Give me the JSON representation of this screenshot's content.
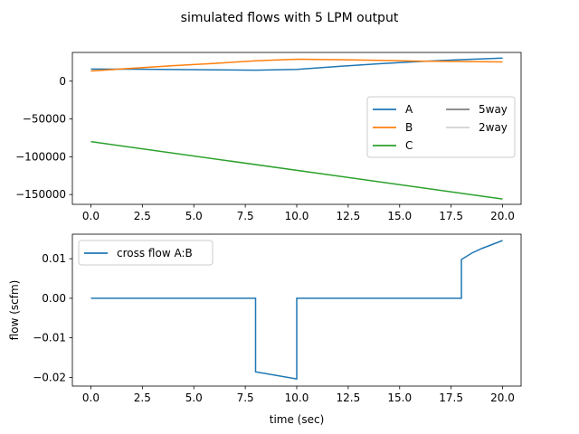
{
  "suptitle": "simulated flows with 5 LPM output",
  "chart_data": [
    {
      "type": "line",
      "title": "",
      "xlabel": "",
      "ylabel": "",
      "xlim": [
        -0.9,
        20.9
      ],
      "ylim": [
        -163000,
        38000
      ],
      "xticks": [
        0.0,
        2.5,
        5.0,
        7.5,
        10.0,
        12.5,
        15.0,
        17.5,
        20.0
      ],
      "xtick_labels": [
        "0.0",
        "2.5",
        "5.0",
        "7.5",
        "10.0",
        "12.5",
        "15.0",
        "17.5",
        "20.0"
      ],
      "yticks": [
        0,
        -50000,
        -100000,
        -150000
      ],
      "ytick_labels": [
        "0",
        "−50000",
        "−100000",
        "−150000"
      ],
      "legend_position": "center-right",
      "legend_columns": 2,
      "series": [
        {
          "name": "A",
          "color": "#1f77b4",
          "x": [
            0,
            2,
            4,
            6,
            8,
            10,
            12,
            14,
            16,
            18,
            20
          ],
          "values": [
            16000,
            15800,
            15400,
            15000,
            14500,
            15500,
            19500,
            23000,
            26000,
            28500,
            30500
          ]
        },
        {
          "name": "B",
          "color": "#ff7f0e",
          "x": [
            0,
            2,
            4,
            6,
            8,
            10,
            12,
            14,
            16,
            18,
            20
          ],
          "values": [
            13500,
            17000,
            20500,
            23500,
            27000,
            29000,
            28500,
            27500,
            26500,
            26000,
            25500
          ]
        },
        {
          "name": "C",
          "color": "#2ca02c",
          "x": [
            0,
            20
          ],
          "values": [
            -80000,
            -156000
          ]
        },
        {
          "name": "5way",
          "color": "#7f7f7f",
          "x": [],
          "values": []
        },
        {
          "name": "2way",
          "color": "#d3d3d3",
          "x": [],
          "values": []
        }
      ]
    },
    {
      "type": "line",
      "title": "",
      "xlabel": "time (sec)",
      "ylabel": "flow (scfm)",
      "xlim": [
        -0.9,
        20.9
      ],
      "ylim": [
        -0.0222,
        0.0162
      ],
      "xticks": [
        0.0,
        2.5,
        5.0,
        7.5,
        10.0,
        12.5,
        15.0,
        17.5,
        20.0
      ],
      "xtick_labels": [
        "0.0",
        "2.5",
        "5.0",
        "7.5",
        "10.0",
        "12.5",
        "15.0",
        "17.5",
        "20.0"
      ],
      "yticks": [
        0.01,
        0.0,
        -0.01,
        -0.02
      ],
      "ytick_labels": [
        "0.01",
        "0.00",
        "−0.01",
        "−0.02"
      ],
      "legend_position": "upper-left",
      "legend_columns": 1,
      "series": [
        {
          "name": "cross flow A:B",
          "color": "#1f77b4",
          "x": [
            0,
            8,
            8,
            10,
            10,
            18,
            18,
            18.5,
            19,
            19.5,
            20
          ],
          "values": [
            0,
            0,
            -0.0186,
            -0.0204,
            0,
            0,
            0.0098,
            0.0114,
            0.0126,
            0.0136,
            0.0146
          ]
        }
      ]
    }
  ]
}
